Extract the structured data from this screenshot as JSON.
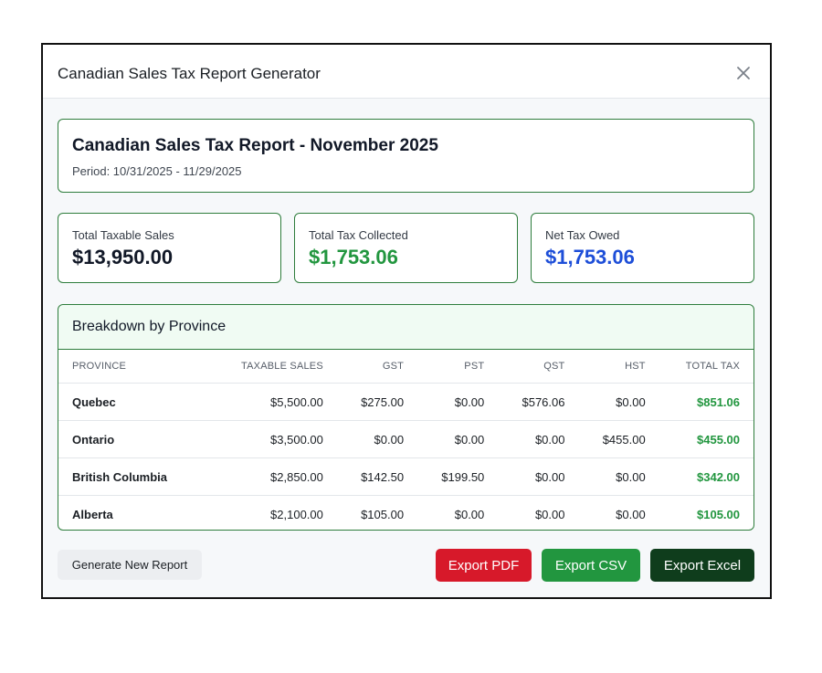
{
  "modal": {
    "title": "Canadian Sales Tax Report Generator",
    "close_icon": "close-icon"
  },
  "report": {
    "title": "Canadian Sales Tax Report - November 2025",
    "period": "Period: 10/31/2025 - 11/29/2025"
  },
  "stats": [
    {
      "label": "Total Taxable Sales",
      "value": "$13,950.00",
      "color": "#111827"
    },
    {
      "label": "Total Tax Collected",
      "value": "$1,753.06",
      "color": "#22963f"
    },
    {
      "label": "Net Tax Owed",
      "value": "$1,753.06",
      "color": "#1d4ed8"
    }
  ],
  "breakdown": {
    "title": "Breakdown by Province",
    "columns": [
      "Province",
      "Taxable Sales",
      "GST",
      "PST",
      "QST",
      "HST",
      "Total Tax"
    ],
    "rows": [
      [
        "Quebec",
        "$5,500.00",
        "$275.00",
        "$0.00",
        "$576.06",
        "$0.00",
        "$851.06"
      ],
      [
        "Ontario",
        "$3,500.00",
        "$0.00",
        "$0.00",
        "$0.00",
        "$455.00",
        "$455.00"
      ],
      [
        "British Columbia",
        "$2,850.00",
        "$142.50",
        "$199.50",
        "$0.00",
        "$0.00",
        "$342.00"
      ],
      [
        "Alberta",
        "$2,100.00",
        "$105.00",
        "$0.00",
        "$0.00",
        "$0.00",
        "$105.00"
      ]
    ]
  },
  "footer": {
    "generate_label": "Generate New Report",
    "export_pdf_label": "Export PDF",
    "export_csv_label": "Export CSV",
    "export_excel_label": "Export Excel"
  },
  "colors": {
    "accent_green": "#22963f",
    "accent_blue": "#1d4ed8",
    "danger_red": "#d7192a",
    "dark_green": "#0f3d1c"
  }
}
